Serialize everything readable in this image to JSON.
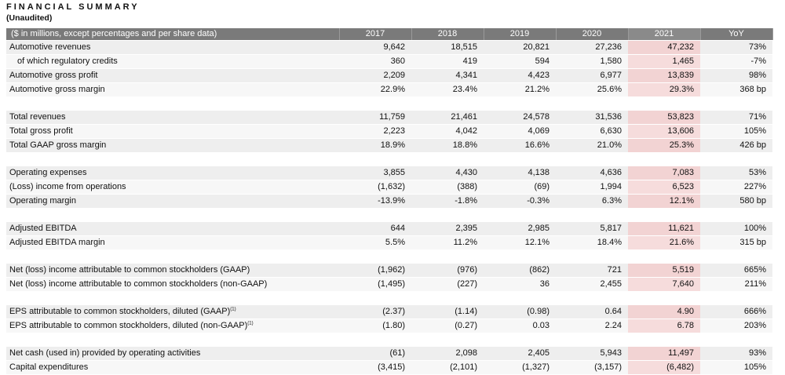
{
  "header": {
    "title": "FINANCIAL SUMMARY",
    "subtitle": "(Unaudited)"
  },
  "table": {
    "columns": [
      "($ in millions, except percentages and per share data)",
      "2017",
      "2018",
      "2019",
      "2020",
      "2021",
      "YoY"
    ],
    "highlight_color": "#f2d3d3",
    "header_color": "#7a7a7a",
    "rows": [
      {
        "label": "Automotive revenues",
        "sup": "",
        "indent": false,
        "values": [
          "9,642",
          "18,515",
          "20,821",
          "27,236",
          "47,232",
          "73%"
        ]
      },
      {
        "label": "of which regulatory credits",
        "sup": "",
        "indent": true,
        "values": [
          "360",
          "419",
          "594",
          "1,580",
          "1,465",
          "-7%"
        ]
      },
      {
        "label": "Automotive gross profit",
        "sup": "",
        "indent": false,
        "values": [
          "2,209",
          "4,341",
          "4,423",
          "6,977",
          "13,839",
          "98%"
        ]
      },
      {
        "label": "Automotive gross margin",
        "sup": "",
        "indent": false,
        "values": [
          "22.9%",
          "23.4%",
          "21.2%",
          "25.6%",
          "29.3%",
          "368 bp"
        ]
      },
      {
        "gap": true
      },
      {
        "label": "Total revenues",
        "sup": "",
        "indent": false,
        "values": [
          "11,759",
          "21,461",
          "24,578",
          "31,536",
          "53,823",
          "71%"
        ]
      },
      {
        "label": "Total gross profit",
        "sup": "",
        "indent": false,
        "values": [
          "2,223",
          "4,042",
          "4,069",
          "6,630",
          "13,606",
          "105%"
        ]
      },
      {
        "label": "Total GAAP gross margin",
        "sup": "",
        "indent": false,
        "values": [
          "18.9%",
          "18.8%",
          "16.6%",
          "21.0%",
          "25.3%",
          "426 bp"
        ]
      },
      {
        "gap": true
      },
      {
        "label": "Operating expenses",
        "sup": "",
        "indent": false,
        "values": [
          "3,855",
          "4,430",
          "4,138",
          "4,636",
          "7,083",
          "53%"
        ]
      },
      {
        "label": "(Loss) income from operations",
        "sup": "",
        "indent": false,
        "values": [
          "(1,632)",
          "(388)",
          "(69)",
          "1,994",
          "6,523",
          "227%"
        ]
      },
      {
        "label": "Operating margin",
        "sup": "",
        "indent": false,
        "values": [
          "-13.9%",
          "-1.8%",
          "-0.3%",
          "6.3%",
          "12.1%",
          "580 bp"
        ]
      },
      {
        "gap": true
      },
      {
        "label": "Adjusted EBITDA",
        "sup": "",
        "indent": false,
        "values": [
          "644",
          "2,395",
          "2,985",
          "5,817",
          "11,621",
          "100%"
        ]
      },
      {
        "label": "Adjusted EBITDA margin",
        "sup": "",
        "indent": false,
        "values": [
          "5.5%",
          "11.2%",
          "12.1%",
          "18.4%",
          "21.6%",
          "315 bp"
        ]
      },
      {
        "gap": true
      },
      {
        "label": "Net (loss) income attributable to common stockholders (GAAP)",
        "sup": "",
        "indent": false,
        "values": [
          "(1,962)",
          "(976)",
          "(862)",
          "721",
          "5,519",
          "665%"
        ]
      },
      {
        "label": "Net (loss) income attributable to common stockholders (non-GAAP)",
        "sup": "",
        "indent": false,
        "values": [
          "(1,495)",
          "(227)",
          "36",
          "2,455",
          "7,640",
          "211%"
        ]
      },
      {
        "gap": true
      },
      {
        "label": "EPS attributable to common stockholders, diluted (GAAP)",
        "sup": "(1)",
        "indent": false,
        "values": [
          "(2.37)",
          "(1.14)",
          "(0.98)",
          "0.64",
          "4.90",
          "666%"
        ]
      },
      {
        "label": "EPS attributable to common stockholders, diluted (non-GAAP)",
        "sup": "(1)",
        "indent": false,
        "values": [
          "(1.80)",
          "(0.27)",
          "0.03",
          "2.24",
          "6.78",
          "203%"
        ]
      },
      {
        "gap": true
      },
      {
        "label": "Net cash (used in) provided by operating activities",
        "sup": "",
        "indent": false,
        "values": [
          "(61)",
          "2,098",
          "2,405",
          "5,943",
          "11,497",
          "93%"
        ]
      },
      {
        "label": "Capital expenditures",
        "sup": "",
        "indent": false,
        "values": [
          "(3,415)",
          "(2,101)",
          "(1,327)",
          "(3,157)",
          "(6,482)",
          "105%"
        ]
      }
    ]
  }
}
